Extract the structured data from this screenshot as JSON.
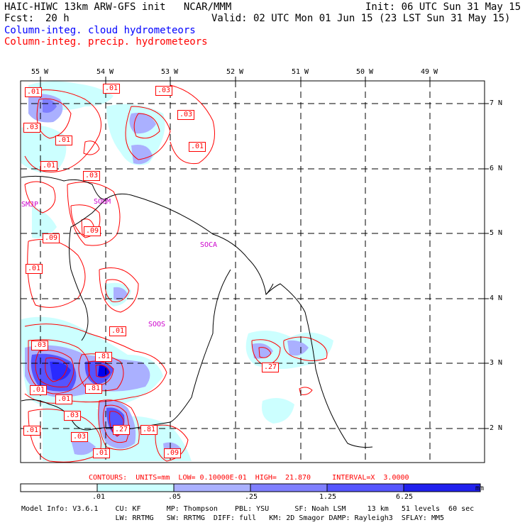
{
  "header": {
    "title": "HAIC-HIWC 13km ARW-GFS init   NCAR/MMM",
    "init": "Init: 06 UTC Sun 31 May 15",
    "fcst_label": "Fcst:",
    "fcst_value": "20 h",
    "valid": "Valid: 02 UTC Mon 01 Jun 15 (23 LST Sun 31 May 15)",
    "cloud_field": "Column-integ. cloud hydrometeors",
    "precip_field": "Column-integ. precip. hydrometeors"
  },
  "colors": {
    "cloud_text": "#0000ff",
    "precip_text": "#ff0000",
    "station_text": "#cc00cc",
    "shade_1": "#ccffff",
    "shade_2": "#aab0ff",
    "shade_3": "#7f7fff",
    "shade_4": "#5555ff",
    "shade_5": "#2a2aff",
    "shade_6": "#0000ee"
  },
  "axes": {
    "lon_labels": [
      "55 W",
      "54 W",
      "53 W",
      "52 W",
      "51 W",
      "50 W",
      "49 W"
    ],
    "lat_labels": [
      "7 N",
      "6 N",
      "5 N",
      "4 N",
      "3 N",
      "2 N"
    ]
  },
  "stations": [
    "SMJP",
    "SOGM",
    "SOCA",
    "SOOS"
  ],
  "contour_labels": [
    ".01",
    ".01",
    ".03",
    ".03",
    ".03",
    ".01",
    ".01",
    ".01",
    ".03",
    ".09",
    ".09",
    ".01",
    ".01",
    ".03",
    ".81",
    ".27",
    ".01",
    ".81",
    ".01",
    ".03",
    ".01",
    ".27",
    ".81",
    ".03",
    ".01",
    ".09",
    ".01"
  ],
  "contour_info": "CONTOURS:  UNITS=mm  LOW= 0.10000E-01  HIGH=  21.870     INTERVAL=X  3.0000",
  "colorbar": {
    "ticks": [
      ".01",
      ".05",
      ".25",
      "1.25",
      "6.25"
    ],
    "unit": "mm"
  },
  "footer": {
    "line1": "Model Info: V3.6.1    CU: KF      MP: Thompson    PBL: YSU      SF: Noah LSM     13 km   51 levels  60 sec",
    "line2": "                      LW: RRTMG   SW: RRTMG  DIFF: full   KM: 2D Smagor DAMP: Rayleigh3  SFLAY: MM5"
  }
}
